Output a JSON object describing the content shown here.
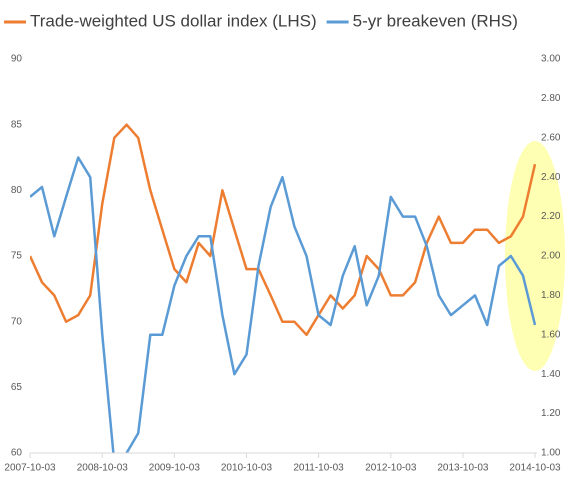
{
  "chart_data": {
    "type": "line",
    "x": [
      "2007-10-03",
      "2007-12-03",
      "2008-02-03",
      "2008-04-03",
      "2008-06-03",
      "2008-08-03",
      "2008-10-03",
      "2008-12-03",
      "2009-02-03",
      "2009-04-03",
      "2009-06-03",
      "2009-08-03",
      "2009-10-03",
      "2009-12-03",
      "2010-02-03",
      "2010-04-03",
      "2010-06-03",
      "2010-08-03",
      "2010-10-03",
      "2010-12-03",
      "2011-02-03",
      "2011-04-03",
      "2011-06-03",
      "2011-08-03",
      "2011-10-03",
      "2011-12-03",
      "2012-02-03",
      "2012-04-03",
      "2012-06-03",
      "2012-08-03",
      "2012-10-03",
      "2012-12-03",
      "2013-02-03",
      "2013-04-03",
      "2013-06-03",
      "2013-08-03",
      "2013-10-03",
      "2013-12-03",
      "2014-02-03",
      "2014-04-03",
      "2014-06-03",
      "2014-08-03",
      "2014-10-03"
    ],
    "series": [
      {
        "name": "Trade-weighted US dollar index (LHS)",
        "color": "#ed7d31",
        "values": [
          75,
          73,
          72,
          70,
          70.5,
          72,
          79,
          84,
          85,
          84,
          80,
          77,
          74,
          73,
          76,
          75,
          80,
          77,
          74,
          74,
          72,
          70,
          70,
          69,
          70.5,
          72,
          71,
          72,
          75,
          74,
          72,
          72,
          73,
          76,
          78,
          76,
          76,
          77,
          77,
          76,
          76.5,
          78,
          82
        ]
      },
      {
        "name": "5-yr breakeven (RHS)",
        "color": "#5b9bd5",
        "axis": "y2",
        "values": [
          2.3,
          2.35,
          2.1,
          2.3,
          2.5,
          2.4,
          1.6,
          0.95,
          1.0,
          1.1,
          1.6,
          1.6,
          1.85,
          2.0,
          2.1,
          2.1,
          1.7,
          1.4,
          1.5,
          1.95,
          2.25,
          2.4,
          2.15,
          2.0,
          1.7,
          1.65,
          1.9,
          2.05,
          1.75,
          1.9,
          2.3,
          2.2,
          2.2,
          2.05,
          1.8,
          1.7,
          1.75,
          1.8,
          1.65,
          1.95,
          2.0,
          1.9,
          1.65
        ]
      }
    ],
    "xlim": [
      "2007-10-03",
      "2014-10-03"
    ],
    "xticks": [
      "2007-10-03",
      "2008-10-03",
      "2009-10-03",
      "2010-10-03",
      "2011-10-03",
      "2012-10-03",
      "2013-10-03",
      "2014-10-03"
    ],
    "ylim": [
      60,
      90
    ],
    "yticks": [
      60,
      65,
      70,
      75,
      80,
      85,
      90
    ],
    "y2lim": [
      1,
      3
    ],
    "y2ticks": [
      {
        "value": 1,
        "label": "1.00"
      },
      {
        "value": 1.2,
        "label": "1.20"
      },
      {
        "value": 1.4,
        "label": "1.40"
      },
      {
        "value": 1.6,
        "label": "1.60"
      },
      {
        "value": 1.8,
        "label": "1.80"
      },
      {
        "value": 2,
        "label": "2.00"
      },
      {
        "value": 2.2,
        "label": "2.20"
      },
      {
        "value": 2.4,
        "label": "2.40"
      },
      {
        "value": 2.6,
        "label": "2.60"
      },
      {
        "value": 2.8,
        "label": "2.80"
      },
      {
        "value": 3,
        "label": "3.00"
      }
    ],
    "legend": "top"
  }
}
